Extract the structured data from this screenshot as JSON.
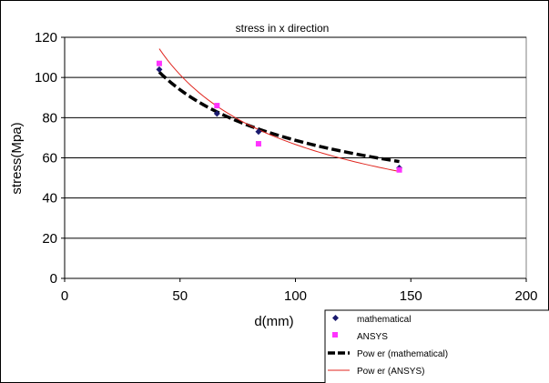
{
  "chart_data": {
    "type": "scatter",
    "title": "stress in x direction",
    "xlabel": "d(mm)",
    "ylabel": "stress(Mpa)",
    "xlim": [
      0,
      200
    ],
    "ylim": [
      0,
      120
    ],
    "xticks": [
      "0",
      "50",
      "100",
      "150",
      "200"
    ],
    "yticks": [
      "0",
      "20",
      "40",
      "60",
      "80",
      "100",
      "120"
    ],
    "grid": "horizontal",
    "legend_position": "bottom-right",
    "series": [
      {
        "name": "mathematical",
        "kind": "points",
        "marker": "diamond",
        "color": "#1a1a6e",
        "x": [
          41,
          66,
          84,
          145
        ],
        "y": [
          104,
          82,
          73,
          55
        ]
      },
      {
        "name": "ANSYS",
        "kind": "points",
        "marker": "square",
        "color": "#ff33ff",
        "x": [
          41,
          66,
          84,
          145
        ],
        "y": [
          107,
          86,
          67,
          54
        ]
      },
      {
        "name": "Pow er (mathematical)",
        "kind": "trend",
        "style": "dashed",
        "color": "#000000",
        "a": 546,
        "b": -0.45,
        "x_range": [
          41,
          145
        ]
      },
      {
        "name": "Pow er (ANSYS)",
        "kind": "trend",
        "style": "solid",
        "color": "#e0261f",
        "a": 1081,
        "b": -0.605,
        "x_range": [
          41,
          145
        ]
      }
    ]
  }
}
